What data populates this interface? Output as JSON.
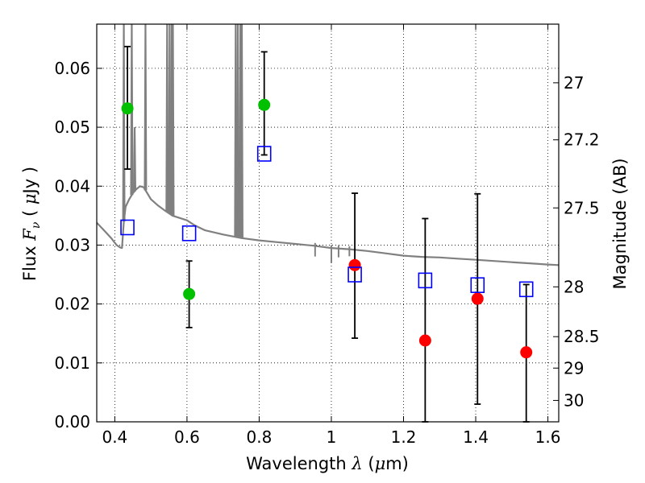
{
  "chart_data": {
    "type": "scatter",
    "xlabel": "Wavelength  λ (μm)",
    "ylabel": "Flux  Fν  ( μJy )",
    "y2label": "Magnitude (AB)",
    "xlim": [
      0.35,
      1.63
    ],
    "ylim": [
      0.0,
      0.0675
    ],
    "grid": true,
    "colors": {
      "green": "#00c000",
      "red": "#ff0000",
      "blue": "#0000ff",
      "sed": "#808080",
      "errbar": "#000000"
    },
    "x_ticks": [
      {
        "value": 0.4,
        "label": "0.4"
      },
      {
        "value": 0.6,
        "label": "0.6"
      },
      {
        "value": 0.8,
        "label": "0.8"
      },
      {
        "value": 1.0,
        "label": "1"
      },
      {
        "value": 1.2,
        "label": "1.2"
      },
      {
        "value": 1.4,
        "label": "1.4"
      },
      {
        "value": 1.6,
        "label": "1.6"
      }
    ],
    "y_ticks": [
      {
        "value": 0.0,
        "label": "0.00"
      },
      {
        "value": 0.01,
        "label": "0.01"
      },
      {
        "value": 0.02,
        "label": "0.02"
      },
      {
        "value": 0.03,
        "label": "0.03"
      },
      {
        "value": 0.04,
        "label": "0.04"
      },
      {
        "value": 0.05,
        "label": "0.05"
      },
      {
        "value": 0.06,
        "label": "0.06"
      }
    ],
    "y2_ticks": [
      {
        "value": 27.0,
        "label": "27"
      },
      {
        "value": 27.2,
        "label": "27.2"
      },
      {
        "value": 27.5,
        "label": "27.5"
      },
      {
        "value": 28.0,
        "label": "28"
      },
      {
        "value": 28.5,
        "label": "28.5"
      },
      {
        "value": 29.0,
        "label": "29"
      },
      {
        "value": 30.0,
        "label": "30"
      }
    ],
    "series": [
      {
        "name": "observed flux (green)",
        "color": "#00c000",
        "marker": "circle",
        "points": [
          {
            "x": 0.435,
            "y": 0.0532,
            "err_lo": 0.0103,
            "err_hi": 0.0105
          },
          {
            "x": 0.606,
            "y": 0.0217,
            "err_lo": 0.0057,
            "err_hi": 0.0056
          },
          {
            "x": 0.814,
            "y": 0.0538,
            "err_lo": 0.0085,
            "err_hi": 0.009
          }
        ]
      },
      {
        "name": "observed flux (red)",
        "color": "#ff0000",
        "marker": "circle",
        "points": [
          {
            "x": 1.065,
            "y": 0.0266,
            "err_lo": 0.0124,
            "err_hi": 0.0122
          },
          {
            "x": 1.26,
            "y": 0.0138,
            "err_lo": 0.0138,
            "err_hi": 0.0207
          },
          {
            "x": 1.405,
            "y": 0.0209,
            "err_lo": 0.0179,
            "err_hi": 0.0178
          },
          {
            "x": 1.54,
            "y": 0.0118,
            "err_lo": 0.0118,
            "err_hi": 0.0115
          }
        ]
      },
      {
        "name": "model photometry",
        "color": "#0000ff",
        "marker": "open-square",
        "points": [
          {
            "x": 0.435,
            "y": 0.033
          },
          {
            "x": 0.606,
            "y": 0.032
          },
          {
            "x": 0.814,
            "y": 0.0455
          },
          {
            "x": 1.065,
            "y": 0.025
          },
          {
            "x": 1.26,
            "y": 0.024
          },
          {
            "x": 1.405,
            "y": 0.0232
          },
          {
            "x": 1.54,
            "y": 0.0225
          }
        ]
      }
    ],
    "sed_continuum": {
      "name": "model SED",
      "x": [
        0.35,
        0.37,
        0.39,
        0.405,
        0.415,
        0.42,
        0.425,
        0.43,
        0.44,
        0.45,
        0.46,
        0.47,
        0.48,
        0.49,
        0.5,
        0.52,
        0.54,
        0.56,
        0.58,
        0.6,
        0.62,
        0.65,
        0.7,
        0.75,
        0.8,
        0.85,
        0.9,
        0.95,
        1.0,
        1.05,
        1.1,
        1.15,
        1.2,
        1.25,
        1.3,
        1.35,
        1.4,
        1.45,
        1.5,
        1.55,
        1.6,
        1.63
      ],
      "y": [
        0.0338,
        0.0325,
        0.0312,
        0.03,
        0.0296,
        0.0295,
        0.034,
        0.0365,
        0.0378,
        0.0388,
        0.0395,
        0.04,
        0.0398,
        0.0388,
        0.0378,
        0.0367,
        0.0358,
        0.035,
        0.0346,
        0.0342,
        0.0334,
        0.0325,
        0.0318,
        0.0312,
        0.0308,
        0.0305,
        0.0302,
        0.0299,
        0.0295,
        0.0293,
        0.029,
        0.0286,
        0.0282,
        0.028,
        0.0279,
        0.0277,
        0.0275,
        0.0273,
        0.0271,
        0.0269,
        0.0267,
        0.0266
      ]
    },
    "sed_lines": [
      {
        "x": 0.425,
        "peak": 0.0675
      },
      {
        "x": 0.447,
        "peak": 0.0675
      },
      {
        "x": 0.455,
        "peak": 0.05
      },
      {
        "x": 0.485,
        "peak": 0.0675
      },
      {
        "x": 0.545,
        "peak": 0.0675
      },
      {
        "x": 0.552,
        "peak": 0.0675
      },
      {
        "x": 0.558,
        "peak": 0.0675
      },
      {
        "x": 0.561,
        "peak": 0.0675
      },
      {
        "x": 0.735,
        "peak": 0.0675
      },
      {
        "x": 0.741,
        "peak": 0.0675
      },
      {
        "x": 0.748,
        "peak": 0.0675
      },
      {
        "x": 0.752,
        "peak": 0.0675
      }
    ],
    "sed_absorption": [
      {
        "x": 0.955,
        "depth": 0.0018
      },
      {
        "x": 1.0,
        "depth": 0.0025
      },
      {
        "x": 1.02,
        "depth": 0.0015
      },
      {
        "x": 1.05,
        "depth": 0.0012
      }
    ]
  }
}
